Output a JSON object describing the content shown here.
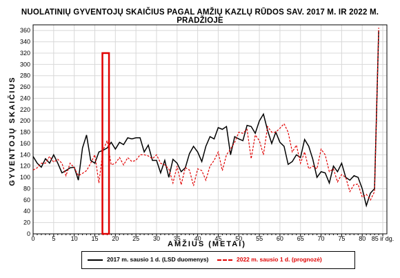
{
  "chart_data": {
    "type": "line",
    "title": "NUOLATINIŲ GYVENTOJŲ SKAIČIUS PAGAL AMŽIŲ KAZLŲ RŪDOS SAV. 2017 M. IR 2022 M. PRADŽIOJE",
    "xlabel": "AMŽIUS (METAI)",
    "ylabel": "GYVENTOJŲ SKAIČIUS",
    "xlim": [
      0,
      86
    ],
    "ylim": [
      0,
      370
    ],
    "x_ticks": [
      "0",
      "5",
      "10",
      "15",
      "20",
      "25",
      "30",
      "35",
      "40",
      "45",
      "50",
      "55",
      "60",
      "65",
      "70",
      "75",
      "80",
      "85 ir dg."
    ],
    "y_ticks": [
      0,
      20,
      40,
      60,
      80,
      100,
      120,
      140,
      160,
      180,
      200,
      220,
      240,
      260,
      280,
      300,
      320,
      340,
      360
    ],
    "grid": true,
    "legend_position": "bottom",
    "series": [
      {
        "name": "2017 m. sausio 1 d. (LSD duomenys)",
        "color": "#000000",
        "style": "solid",
        "values": [
          137,
          125,
          118,
          133,
          125,
          140,
          125,
          108,
          112,
          117,
          118,
          95,
          152,
          175,
          130,
          125,
          145,
          148,
          152,
          162,
          150,
          162,
          158,
          170,
          168,
          170,
          170,
          145,
          157,
          130,
          130,
          108,
          130,
          100,
          132,
          125,
          110,
          117,
          142,
          155,
          145,
          128,
          155,
          172,
          168,
          188,
          185,
          190,
          140,
          172,
          168,
          165,
          192,
          190,
          178,
          200,
          212,
          183,
          160,
          180,
          162,
          155,
          123,
          128,
          140,
          135,
          167,
          155,
          132,
          100,
          110,
          108,
          90,
          120,
          110,
          125,
          100,
          95,
          103,
          100,
          80,
          50,
          72,
          80,
          360
        ]
      },
      {
        "name": "2022 m. sausio 1 d. (prognozė)",
        "color": "#e00000",
        "style": "dashed",
        "values": [
          113,
          117,
          125,
          125,
          137,
          127,
          132,
          125,
          103,
          125,
          117,
          103,
          107,
          112,
          125,
          140,
          90,
          148,
          165,
          122,
          125,
          135,
          122,
          135,
          128,
          130,
          140,
          140,
          138,
          133,
          140,
          125,
          122,
          115,
          90,
          120,
          87,
          117,
          113,
          85,
          115,
          112,
          95,
          120,
          130,
          145,
          112,
          140,
          150,
          162,
          180,
          178,
          185,
          133,
          175,
          165,
          140,
          190,
          180,
          180,
          187,
          195,
          180,
          145,
          157,
          125,
          145,
          115,
          120,
          115,
          150,
          140,
          110,
          115,
          92,
          105,
          100,
          75,
          87,
          88,
          65,
          70,
          60,
          75,
          365
        ]
      }
    ],
    "annotations": [
      "red rectangle highlighting ages 17-18"
    ]
  }
}
